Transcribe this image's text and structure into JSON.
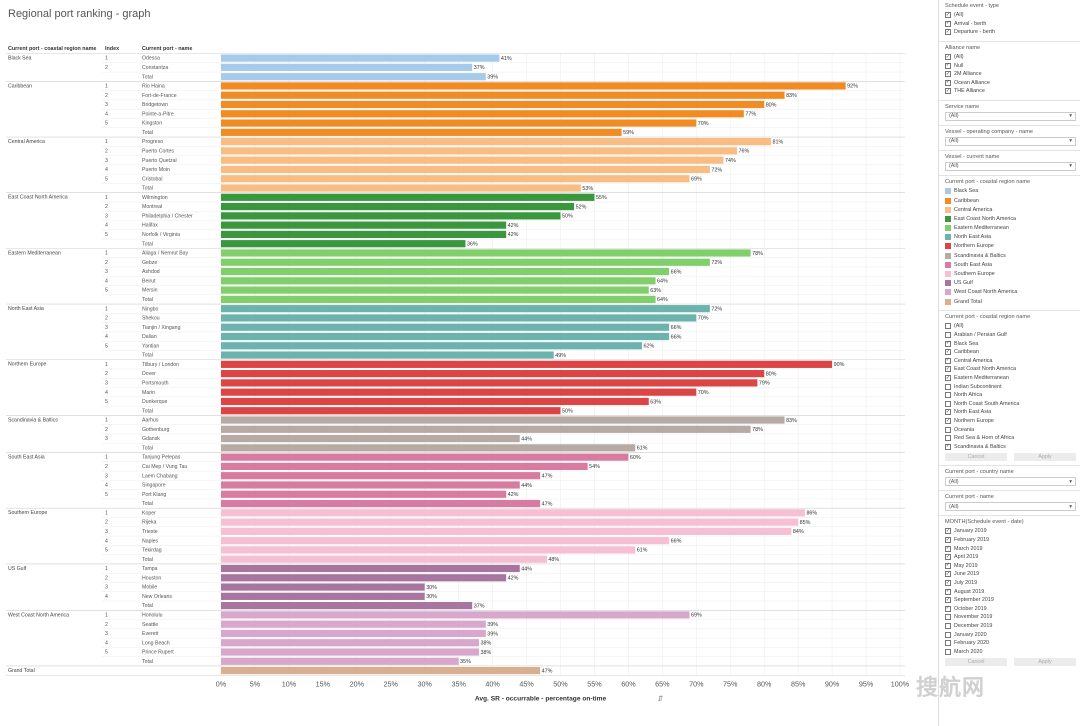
{
  "page_title": "Regional port ranking - graph",
  "watermark": "搜航网",
  "chart_data": {
    "type": "bar",
    "orientation": "horizontal",
    "title": "Regional port ranking - graph",
    "xlabel": "Avg. SR - occurrable - percentage on-time",
    "xlim": [
      0,
      100
    ],
    "x_ticks": [
      "0%",
      "5%",
      "10%",
      "15%",
      "20%",
      "25%",
      "30%",
      "35%",
      "40%",
      "45%",
      "50%",
      "55%",
      "60%",
      "65%",
      "70%",
      "75%",
      "80%",
      "85%",
      "90%",
      "95%",
      "100%"
    ],
    "column_headers": [
      "Current port - coastal region name",
      "Index",
      "Current port - name"
    ],
    "total_label": "Total",
    "groups": [
      {
        "region": "Black Sea",
        "color": "#a6cbea",
        "rows": [
          {
            "index": "1",
            "port": "Odessa",
            "value": 41
          },
          {
            "index": "2",
            "port": "Constantza",
            "value": 37
          }
        ],
        "total": 39
      },
      {
        "region": "Caribbean",
        "color": "#f08c23",
        "rows": [
          {
            "index": "1",
            "port": "Rio Haina",
            "value": 92
          },
          {
            "index": "2",
            "port": "Fort-de-France",
            "value": 83
          },
          {
            "index": "3",
            "port": "Bridgetown",
            "value": 80
          },
          {
            "index": "4",
            "port": "Pointe-a-Pitre",
            "value": 77
          },
          {
            "index": "5",
            "port": "Kingston",
            "value": 70
          }
        ],
        "total": 59
      },
      {
        "region": "Central America",
        "color": "#f8bd83",
        "rows": [
          {
            "index": "1",
            "port": "Progreso",
            "value": 81
          },
          {
            "index": "2",
            "port": "Puerto Cortes",
            "value": 76
          },
          {
            "index": "3",
            "port": "Puerto Quetzal",
            "value": 74
          },
          {
            "index": "4",
            "port": "Puerto Moin",
            "value": 72
          },
          {
            "index": "5",
            "port": "Cristobal",
            "value": 69
          }
        ],
        "total": 53
      },
      {
        "region": "East Coast North America",
        "color": "#3b973e",
        "rows": [
          {
            "index": "1",
            "port": "Wilmington",
            "value": 55
          },
          {
            "index": "2",
            "port": "Montreal",
            "value": 52
          },
          {
            "index": "3",
            "port": "Philadelphia / Chester",
            "value": 50
          },
          {
            "index": "4",
            "port": "Halifax",
            "value": 42
          },
          {
            "index": "5",
            "port": "Norfolk / Virginia",
            "value": 42
          }
        ],
        "total": 36
      },
      {
        "region": "Eastern Mediterranean",
        "color": "#80cf6b",
        "rows": [
          {
            "index": "1",
            "port": "Aliaga / Nemrut Bay",
            "value": 78
          },
          {
            "index": "2",
            "port": "Gebze",
            "value": 72
          },
          {
            "index": "3",
            "port": "Ashdod",
            "value": 66
          },
          {
            "index": "4",
            "port": "Beirut",
            "value": 64
          },
          {
            "index": "5",
            "port": "Mersin",
            "value": 63
          }
        ],
        "total": 64
      },
      {
        "region": "North East Asia",
        "color": "#6cb3ae",
        "rows": [
          {
            "index": "1",
            "port": "Ningbo",
            "value": 72
          },
          {
            "index": "2",
            "port": "Shekou",
            "value": 70
          },
          {
            "index": "3",
            "port": "Tianjin / Xingang",
            "value": 66
          },
          {
            "index": "4",
            "port": "Dalian",
            "value": 66
          },
          {
            "index": "5",
            "port": "Yantian",
            "value": 62
          }
        ],
        "total": 49
      },
      {
        "region": "Northern Europe",
        "color": "#dc4446",
        "rows": [
          {
            "index": "1",
            "port": "Tilbury / London",
            "value": 90
          },
          {
            "index": "2",
            "port": "Dover",
            "value": 80
          },
          {
            "index": "3",
            "port": "Portsmouth",
            "value": 79
          },
          {
            "index": "4",
            "port": "Marin",
            "value": 70
          },
          {
            "index": "5",
            "port": "Dunkerque",
            "value": 63
          }
        ],
        "total": 50
      },
      {
        "region": "Scandinavia & Baltics",
        "color": "#b6aaa5",
        "rows": [
          {
            "index": "1",
            "port": "Aarhus",
            "value": 83
          },
          {
            "index": "2",
            "port": "Gothenburg",
            "value": 78
          },
          {
            "index": "3",
            "port": "Gdansk",
            "value": 44
          }
        ],
        "total": 61
      },
      {
        "region": "South East Asia",
        "color": "#d77ba1",
        "rows": [
          {
            "index": "1",
            "port": "Tanjung Pelepas",
            "value": 60
          },
          {
            "index": "2",
            "port": "Cai Mep / Vung Tau",
            "value": 54
          },
          {
            "index": "3",
            "port": "Laem Chabang",
            "value": 47
          },
          {
            "index": "4",
            "port": "Singapore",
            "value": 44
          },
          {
            "index": "5",
            "port": "Port Klang",
            "value": 42
          }
        ],
        "total": 47
      },
      {
        "region": "Southern Europe",
        "color": "#f7bfd4",
        "rows": [
          {
            "index": "1",
            "port": "Koper",
            "value": 86
          },
          {
            "index": "2",
            "port": "Rijeka",
            "value": 85
          },
          {
            "index": "3",
            "port": "Trieste",
            "value": 84
          },
          {
            "index": "4",
            "port": "Naples",
            "value": 66
          },
          {
            "index": "5",
            "port": "Tekirdag",
            "value": 61
          }
        ],
        "total": 48
      },
      {
        "region": "US Gulf",
        "color": "#a7759f",
        "rows": [
          {
            "index": "1",
            "port": "Tampa",
            "value": 44
          },
          {
            "index": "2",
            "port": "Houston",
            "value": 42
          },
          {
            "index": "3",
            "port": "Mobile",
            "value": 30
          },
          {
            "index": "4",
            "port": "New Orleans",
            "value": 30
          }
        ],
        "total": 37
      },
      {
        "region": "West Coast North America",
        "color": "#d7a8cc",
        "rows": [
          {
            "index": "1",
            "port": "Honolulu",
            "value": 69
          },
          {
            "index": "2",
            "port": "Seattle",
            "value": 39
          },
          {
            "index": "3",
            "port": "Everett",
            "value": 39
          },
          {
            "index": "4",
            "port": "Long Beach",
            "value": 38
          },
          {
            "index": "5",
            "port": "Prince Rupert",
            "value": 38
          }
        ],
        "total": 35
      }
    ],
    "grand_total": {
      "label": "Grand Total",
      "value": 47,
      "color": "#d9b08f"
    }
  },
  "sidebar": {
    "schedule_event": {
      "title": "Schedule event - type",
      "items": [
        {
          "label": "(All)",
          "checked": true
        },
        {
          "label": "Arrival - berth",
          "checked": true
        },
        {
          "label": "Departure - berth",
          "checked": true
        }
      ]
    },
    "alliance": {
      "title": "Alliance name",
      "items": [
        {
          "label": "(All)",
          "checked": true
        },
        {
          "label": "Null",
          "checked": true
        },
        {
          "label": "2M Alliance",
          "checked": true
        },
        {
          "label": "Ocean Alliance",
          "checked": true
        },
        {
          "label": "THE Alliance",
          "checked": true
        }
      ]
    },
    "service": {
      "title": "Service name",
      "value": "(All)"
    },
    "operator": {
      "title": "Vessel - operating company - name",
      "value": "(All)"
    },
    "vessel": {
      "title": "Vessel - current name",
      "value": "(All)"
    },
    "legend": {
      "title": "Current port - coastal region name",
      "items": [
        {
          "label": "Black Sea",
          "color": "#a6cbea"
        },
        {
          "label": "Caribbean",
          "color": "#f08c23"
        },
        {
          "label": "Central America",
          "color": "#f8bd83"
        },
        {
          "label": "East Coast North America",
          "color": "#3b973e"
        },
        {
          "label": "Eastern Mediterranean",
          "color": "#80cf6b"
        },
        {
          "label": "North East Asia",
          "color": "#6cb3ae"
        },
        {
          "label": "Northern Europe",
          "color": "#dc4446"
        },
        {
          "label": "Scandinavia & Baltics",
          "color": "#b6aaa5"
        },
        {
          "label": "South East Asia",
          "color": "#d77ba1"
        },
        {
          "label": "Southern Europe",
          "color": "#f7bfd4"
        },
        {
          "label": "US Gulf",
          "color": "#a7759f"
        },
        {
          "label": "West Coast North America",
          "color": "#d7a8cc"
        },
        {
          "label": "Grand Total",
          "color": "#d9b08f"
        }
      ]
    },
    "region_filter": {
      "title": "Current port - coastal region name",
      "items": [
        {
          "label": "(All)",
          "checked": false
        },
        {
          "label": "Arabian / Persian Gulf",
          "checked": false
        },
        {
          "label": "Black Sea",
          "checked": true
        },
        {
          "label": "Caribbean",
          "checked": true
        },
        {
          "label": "Central America",
          "checked": true
        },
        {
          "label": "East Coast North America",
          "checked": true
        },
        {
          "label": "Eastern Mediterranean",
          "checked": true
        },
        {
          "label": "Indian Subcontinent",
          "checked": false
        },
        {
          "label": "North Africa",
          "checked": false
        },
        {
          "label": "North Coast South America",
          "checked": false
        },
        {
          "label": "North East Asia",
          "checked": true
        },
        {
          "label": "Northern Europe",
          "checked": true
        },
        {
          "label": "Oceania",
          "checked": false
        },
        {
          "label": "Red Sea & Horn of Africa",
          "checked": false
        },
        {
          "label": "Scandinavia & Baltics",
          "checked": true
        }
      ],
      "cancel": "Cancel",
      "apply": "Apply"
    },
    "country": {
      "title": "Current port - country name",
      "value": "(All)"
    },
    "port": {
      "title": "Current port - name",
      "value": "(All)"
    },
    "month": {
      "title": "MONTH(Schedule event - date)",
      "items": [
        {
          "label": "January 2019",
          "checked": true
        },
        {
          "label": "February 2019",
          "checked": true
        },
        {
          "label": "March 2019",
          "checked": true
        },
        {
          "label": "April 2019",
          "checked": true
        },
        {
          "label": "May 2019",
          "checked": true
        },
        {
          "label": "June 2019",
          "checked": true
        },
        {
          "label": "July 2019",
          "checked": true
        },
        {
          "label": "August 2019",
          "checked": true
        },
        {
          "label": "September 2019",
          "checked": true
        },
        {
          "label": "October 2019",
          "checked": true
        },
        {
          "label": "November 2019",
          "checked": false
        },
        {
          "label": "December 2019",
          "checked": false
        },
        {
          "label": "January 2020",
          "checked": false
        },
        {
          "label": "February 2020",
          "checked": false
        },
        {
          "label": "March 2020",
          "checked": false
        }
      ],
      "cancel": "Cancel",
      "apply": "Apply"
    }
  }
}
